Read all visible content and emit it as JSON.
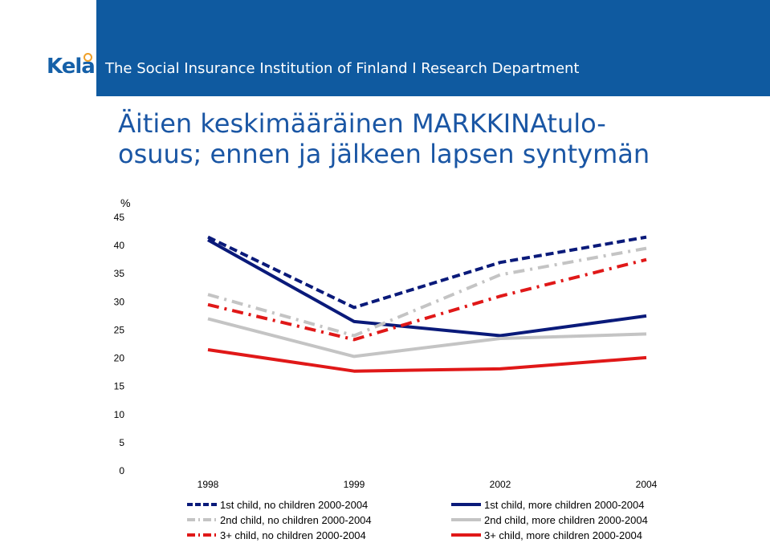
{
  "header": {
    "logo_text": "Kela",
    "organization": "The Social Insurance Institution of Finland I Research Department",
    "colors": {
      "band": "#0f5aa0",
      "logo": "#1560a8",
      "logo_accent": "#f0a028"
    }
  },
  "title_lines": [
    "Äitien keskimääräinen MARKKINAtulo-",
    "osuus; ennen ja jälkeen lapsen syntymän"
  ],
  "chart_data": {
    "type": "line",
    "ylabel": "%",
    "xlabel": "",
    "ylim": [
      0,
      45
    ],
    "yticks": [
      0,
      5,
      10,
      15,
      20,
      25,
      30,
      35,
      40,
      45
    ],
    "categories": [
      "1998",
      "1999",
      "2002",
      "2004"
    ],
    "grid": false,
    "legend_position": "bottom",
    "series": [
      {
        "name": "1st child, no children 2000-2004",
        "values": [
          41.5,
          29.0,
          37.0,
          41.5
        ],
        "color": "#0a1a7a",
        "style": "dashed"
      },
      {
        "name": "1st child, more children 2000-2004",
        "values": [
          41.0,
          26.5,
          24.0,
          27.5
        ],
        "color": "#0a1a7a",
        "style": "solid"
      },
      {
        "name": "2nd child, no children 2000-2004",
        "values": [
          31.3,
          24.0,
          34.8,
          39.5
        ],
        "color": "#c4c4c4",
        "style": "dashdot"
      },
      {
        "name": "2nd child, more children 2000-2004",
        "values": [
          27.0,
          20.3,
          23.5,
          24.3
        ],
        "color": "#c4c4c4",
        "style": "solid"
      },
      {
        "name": "3+ child, no children 2000-2004",
        "values": [
          29.5,
          23.3,
          31.0,
          37.5
        ],
        "color": "#e01818",
        "style": "dashdot"
      },
      {
        "name": "3+ child, more children 2000-2004",
        "values": [
          21.5,
          17.7,
          18.1,
          20.1
        ],
        "color": "#e01818",
        "style": "solid"
      }
    ]
  }
}
